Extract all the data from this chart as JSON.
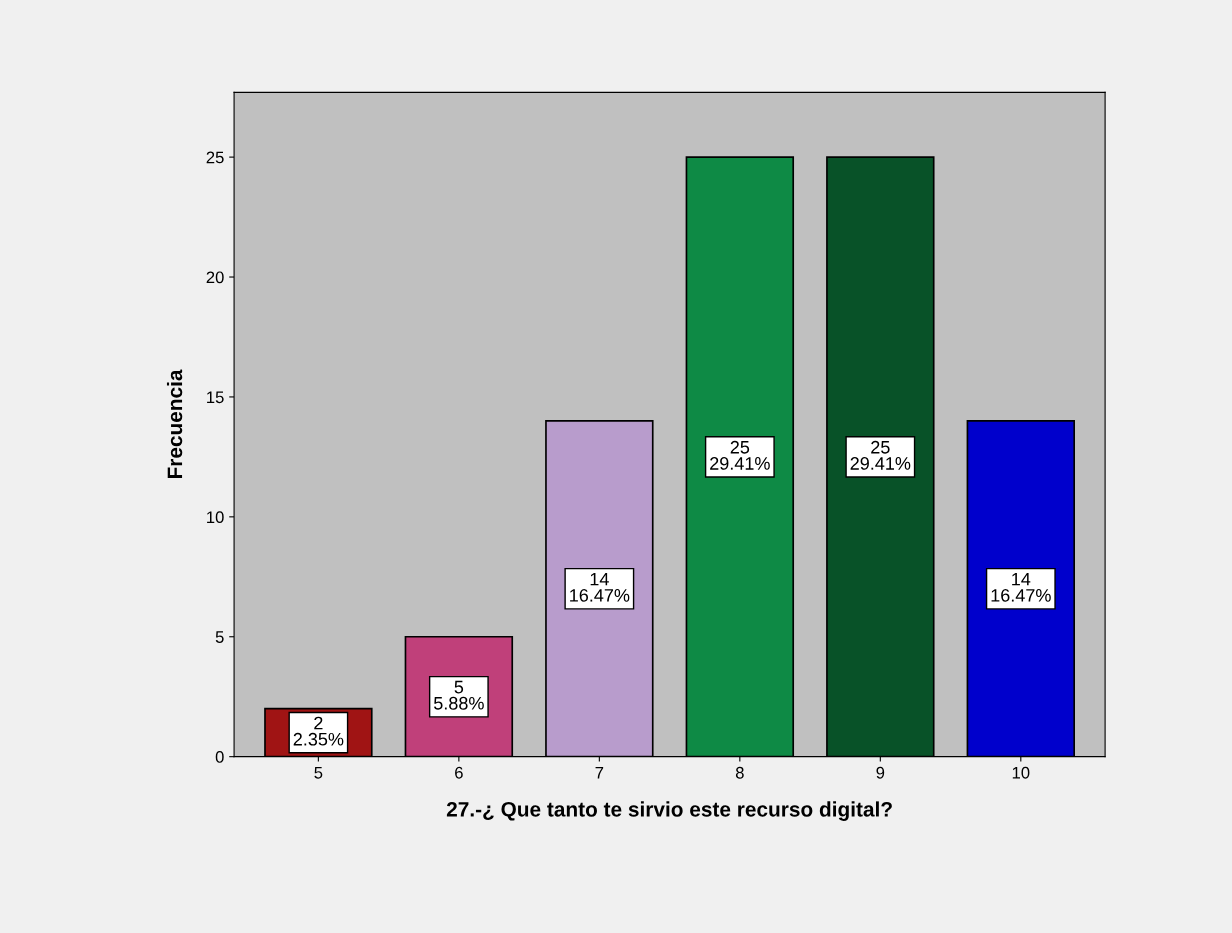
{
  "chart_data": {
    "type": "bar",
    "xlabel": "27.-¿ Que tanto te sirvio este recurso digital?",
    "ylabel": "Frecuencia",
    "categories": [
      "5",
      "6",
      "7",
      "8",
      "9",
      "10"
    ],
    "values": [
      2,
      5,
      14,
      25,
      25,
      14
    ],
    "colors": [
      "#a01414",
      "#c0407a",
      "#b89ccc",
      "#0e8a45",
      "#085228",
      "#0000cc"
    ],
    "value_labels": [
      "2\n2.35%",
      "5\n5.88%",
      "14\n16.47%",
      "25\n29.41%",
      "25\n29.41%",
      "14\n16.47%"
    ],
    "ylim": [
      0,
      27.7
    ],
    "yticks": [
      0,
      5,
      10,
      15,
      20,
      25
    ],
    "grid": false,
    "legend": false
  }
}
